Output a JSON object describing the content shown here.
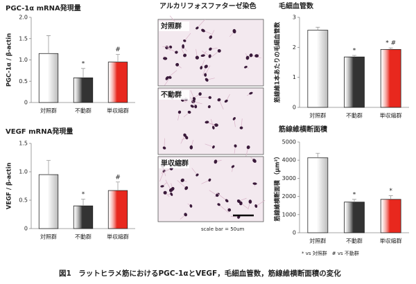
{
  "figure": {
    "stain_title": "アルカリフォスファターゼ染色",
    "panels": [
      "対照群",
      "不動群",
      "単収縮群"
    ],
    "scale_bar": "scale bar = 50um",
    "note": "*  vs 対照群　#  vs 不動群",
    "caption": "図1　ラットヒラメ筋におけるPGC-1αとVEGF，毛細血管数，筋線維横断面積の変化"
  },
  "chart_data": [
    {
      "type": "bar",
      "title": "PGC-1α mRNA発現量",
      "y_label": "PGC-1α / β-actin",
      "categories": [
        "対照群",
        "不動群",
        "単収縮群"
      ],
      "values": [
        1.15,
        0.58,
        0.95
      ],
      "errors": [
        0.42,
        0.22,
        0.18
      ],
      "markers": [
        null,
        "*",
        "#"
      ],
      "colors": [
        "#ffffff",
        "#333333",
        "#e8281e"
      ],
      "ylim": [
        0,
        2
      ],
      "yticks": [
        0,
        0.5,
        {
          "value": 1,
          "label": "1.0"
        },
        1.5,
        {
          "value": 2,
          "label": "2.0"
        }
      ]
    },
    {
      "type": "bar",
      "title": "VEGF mRNA発現量",
      "y_label": "VEGF / β-actin",
      "categories": [
        "対照群",
        "不動群",
        "単収縮群"
      ],
      "values": [
        0.95,
        0.4,
        0.67
      ],
      "errors": [
        0.25,
        0.12,
        0.15
      ],
      "markers": [
        null,
        "*",
        "#"
      ],
      "colors": [
        "#ffffff",
        "#333333",
        "#e8281e"
      ],
      "ylim": [
        0,
        1.5
      ],
      "yticks": [
        0,
        0.5,
        {
          "value": 1,
          "label": "1.0"
        },
        1.5
      ]
    },
    {
      "type": "bar",
      "title": "毛細血管数",
      "y_label": "筋線維1本あたりの毛細血管数",
      "categories": [
        "対照群",
        "不動群",
        "単収縮群"
      ],
      "values": [
        2.57,
        1.68,
        1.93
      ],
      "errors": [
        0.1,
        0.05,
        0.05
      ],
      "markers": [
        null,
        "*",
        "* #"
      ],
      "colors": [
        "#ffffff",
        "#333333",
        "#e8281e"
      ],
      "ylim": [
        0,
        3
      ],
      "yticks": [
        0,
        1,
        2,
        3
      ]
    },
    {
      "type": "bar",
      "title": "筋線維横断面積",
      "y_label": "筋線維横断面積 （μm²）",
      "categories": [
        "対照群",
        "不動群",
        "単収縮群"
      ],
      "values": [
        4130,
        1690,
        1840
      ],
      "errors": [
        250,
        150,
        200
      ],
      "markers": [
        null,
        "*",
        "*"
      ],
      "colors": [
        "#ffffff",
        "#333333",
        "#e8281e"
      ],
      "ylim": [
        0,
        5000
      ],
      "yticks": [
        0,
        1000,
        2000,
        3000,
        4000,
        5000
      ]
    }
  ]
}
